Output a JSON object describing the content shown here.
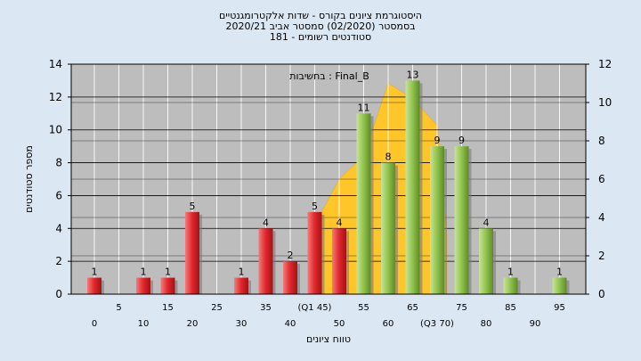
{
  "chart_data": {
    "type": "bar",
    "title_lines": [
      "היסטוגרמת ציונים בקורס - שדות אלקטרומגנטיים",
      "בסמסטר  (02/2020)  סמסטר אביב 2020/21",
      "סטודנטים רשומים - 181"
    ],
    "legend_text": "בחשיבות : Final_B",
    "ylabel": "מספר סטודנטים",
    "xlabel": "טווח ציונים",
    "ylim_left": [
      0,
      14
    ],
    "ylim_right": [
      0,
      12
    ],
    "yticks_left": [
      0,
      2,
      4,
      6,
      8,
      10,
      12,
      14
    ],
    "yticks_right": [
      0,
      2,
      4,
      6,
      8,
      10,
      12
    ],
    "x_tick_labels": [
      {
        "text": "0",
        "pos": 0,
        "row": 2
      },
      {
        "text": "5",
        "pos": 5,
        "row": 1
      },
      {
        "text": "10",
        "pos": 10,
        "row": 2
      },
      {
        "text": "15",
        "pos": 15,
        "row": 1
      },
      {
        "text": "20",
        "pos": 20,
        "row": 2
      },
      {
        "text": "25",
        "pos": 25,
        "row": 1
      },
      {
        "text": "30",
        "pos": 30,
        "row": 2
      },
      {
        "text": "35",
        "pos": 35,
        "row": 1
      },
      {
        "text": "40",
        "pos": 40,
        "row": 2
      },
      {
        "text": "(Q1 45)",
        "pos": 45,
        "row": 1
      },
      {
        "text": "50",
        "pos": 50,
        "row": 2
      },
      {
        "text": "55",
        "pos": 55,
        "row": 1
      },
      {
        "text": "60",
        "pos": 60,
        "row": 2
      },
      {
        "text": "65",
        "pos": 65,
        "row": 1
      },
      {
        "text": "(Q3 70)",
        "pos": 70,
        "row": 2
      },
      {
        "text": "75",
        "pos": 75,
        "row": 1
      },
      {
        "text": "80",
        "pos": 80,
        "row": 2
      },
      {
        "text": "85",
        "pos": 85,
        "row": 1
      },
      {
        "text": "90",
        "pos": 90,
        "row": 2
      },
      {
        "text": "95",
        "pos": 95,
        "row": 1
      }
    ],
    "bars": [
      {
        "x": 0,
        "value": 1,
        "label": "1",
        "color": "red"
      },
      {
        "x": 10,
        "value": 1,
        "label": "1",
        "color": "red"
      },
      {
        "x": 15,
        "value": 1,
        "label": "1",
        "color": "red"
      },
      {
        "x": 20,
        "value": 5,
        "label": "5",
        "color": "red"
      },
      {
        "x": 30,
        "value": 1,
        "label": "1",
        "color": "red"
      },
      {
        "x": 35,
        "value": 4,
        "label": "4",
        "color": "red"
      },
      {
        "x": 40,
        "value": 2,
        "label": "2",
        "color": "red"
      },
      {
        "x": 45,
        "value": 5,
        "label": "5",
        "color": "red"
      },
      {
        "x": 50,
        "value": 4,
        "label": "4",
        "color": "red"
      },
      {
        "x": 55,
        "value": 11,
        "label": "11",
        "color": "green"
      },
      {
        "x": 60,
        "value": 8,
        "label": "8",
        "color": "green"
      },
      {
        "x": 65,
        "value": 13,
        "label": "13",
        "color": "green"
      },
      {
        "x": 70,
        "value": 9,
        "label": "9",
        "color": "green"
      },
      {
        "x": 75,
        "value": 9,
        "label": "9",
        "color": "green"
      },
      {
        "x": 80,
        "value": 4,
        "label": "4",
        "color": "green"
      },
      {
        "x": 85,
        "value": 1,
        "label": "1",
        "color": "green"
      },
      {
        "x": 95,
        "value": 1,
        "label": "1",
        "color": "green"
      }
    ],
    "area_series": {
      "axis": "right",
      "points": [
        [
          45,
          0
        ],
        [
          45,
          3.6
        ],
        [
          50,
          6.0
        ],
        [
          55,
          7.2
        ],
        [
          60,
          11.0
        ],
        [
          65,
          10.2
        ],
        [
          70,
          8.8
        ],
        [
          72,
          3.2
        ],
        [
          72,
          0
        ]
      ]
    },
    "colors": {
      "plot_bg": "#bdbdbd",
      "area": "#ffc629",
      "red_bar": "#e0262b",
      "green_bar": "#8fc34a",
      "page_bg": "#dbe7f3"
    },
    "grid": true
  }
}
